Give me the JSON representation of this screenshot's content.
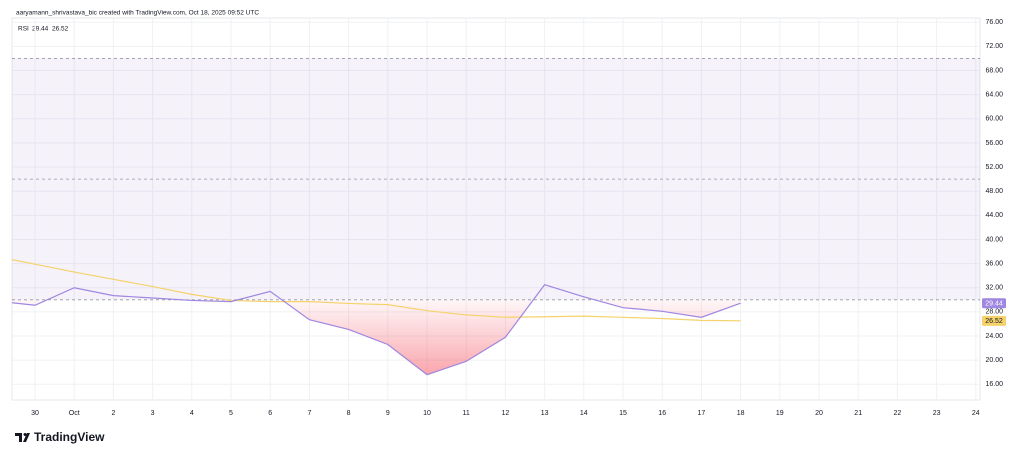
{
  "chart_data": {
    "type": "line",
    "credit": "aaryamann_shrivastava_bic created with TradingView.com, Oct 18, 2025 09:52 UTC",
    "indicator": "RSI",
    "watermark": "TradingView",
    "categories": [
      null,
      "30",
      "Oct",
      "2",
      "3",
      "4",
      "5",
      "6",
      "7",
      "8",
      "9",
      "10",
      "11",
      "12",
      "13",
      "14",
      "15",
      "16",
      "17",
      "18",
      "19",
      "20",
      "21",
      "22",
      "23",
      "24"
    ],
    "series": [
      {
        "name": "RSI",
        "color": "#9f86e0",
        "values": [
          29.8,
          29.1,
          32.0,
          30.7,
          30.3,
          29.9,
          29.7,
          31.4,
          26.7,
          25.1,
          22.6,
          17.6,
          19.8,
          23.8,
          32.5,
          30.5,
          28.7,
          28.1,
          27.1,
          29.44,
          null,
          null,
          null,
          null,
          null,
          null
        ]
      },
      {
        "color": "#f5d26b",
        "values": [
          37.2,
          35.9,
          34.6,
          33.4,
          32.2,
          30.9,
          29.9,
          29.7,
          29.7,
          29.4,
          29.2,
          28.2,
          27.5,
          27.1,
          27.2,
          27.3,
          27.1,
          26.9,
          26.6,
          26.52,
          null,
          null,
          null,
          null,
          null,
          null
        ]
      }
    ],
    "levels": [
      70,
      50,
      30
    ],
    "band_color": "#7e57c2",
    "oversold_color": "#f23645",
    "ylim": [
      13.4,
      76.7
    ],
    "yticks": [
      {
        "value": 76,
        "label": "76.00"
      },
      {
        "value": 72,
        "label": "72.00"
      },
      {
        "value": 68,
        "label": "68.00"
      },
      {
        "value": 64,
        "label": "64.00"
      },
      {
        "value": 60,
        "label": "60.00"
      },
      {
        "value": 56,
        "label": "56.00"
      },
      {
        "value": 52,
        "label": "52.00"
      },
      {
        "value": 48,
        "label": "48.00"
      },
      {
        "value": 44,
        "label": "44.00"
      },
      {
        "value": 40,
        "label": "40.00"
      },
      {
        "value": 36,
        "label": "36.00"
      },
      {
        "value": 32,
        "label": "32.00"
      },
      {
        "value": 28,
        "label": "28.00"
      },
      {
        "value": 24,
        "label": "24.00"
      },
      {
        "value": 20,
        "label": "20.00"
      },
      {
        "value": 16,
        "label": "16.00"
      }
    ],
    "grid": true
  }
}
